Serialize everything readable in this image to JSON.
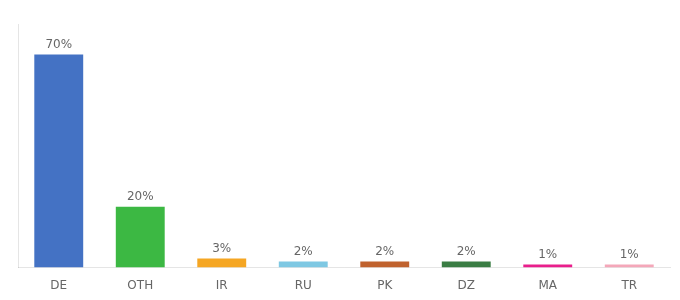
{
  "chart_data": {
    "type": "bar",
    "categories": [
      "DE",
      "OTH",
      "IR",
      "RU",
      "PK",
      "DZ",
      "MA",
      "TR"
    ],
    "values": [
      70,
      20,
      3,
      2,
      2,
      2,
      1,
      1
    ],
    "value_labels": [
      "70%",
      "20%",
      "3%",
      "2%",
      "2%",
      "2%",
      "1%",
      "1%"
    ],
    "colors": [
      "#4472c4",
      "#3cb843",
      "#f5a623",
      "#7ec8e3",
      "#c0622e",
      "#3a7d44",
      "#e91e8c",
      "#f4a7b9"
    ],
    "ylim": [
      0,
      80
    ],
    "grid": false,
    "data_labels": true,
    "tick_labels": "x"
  }
}
